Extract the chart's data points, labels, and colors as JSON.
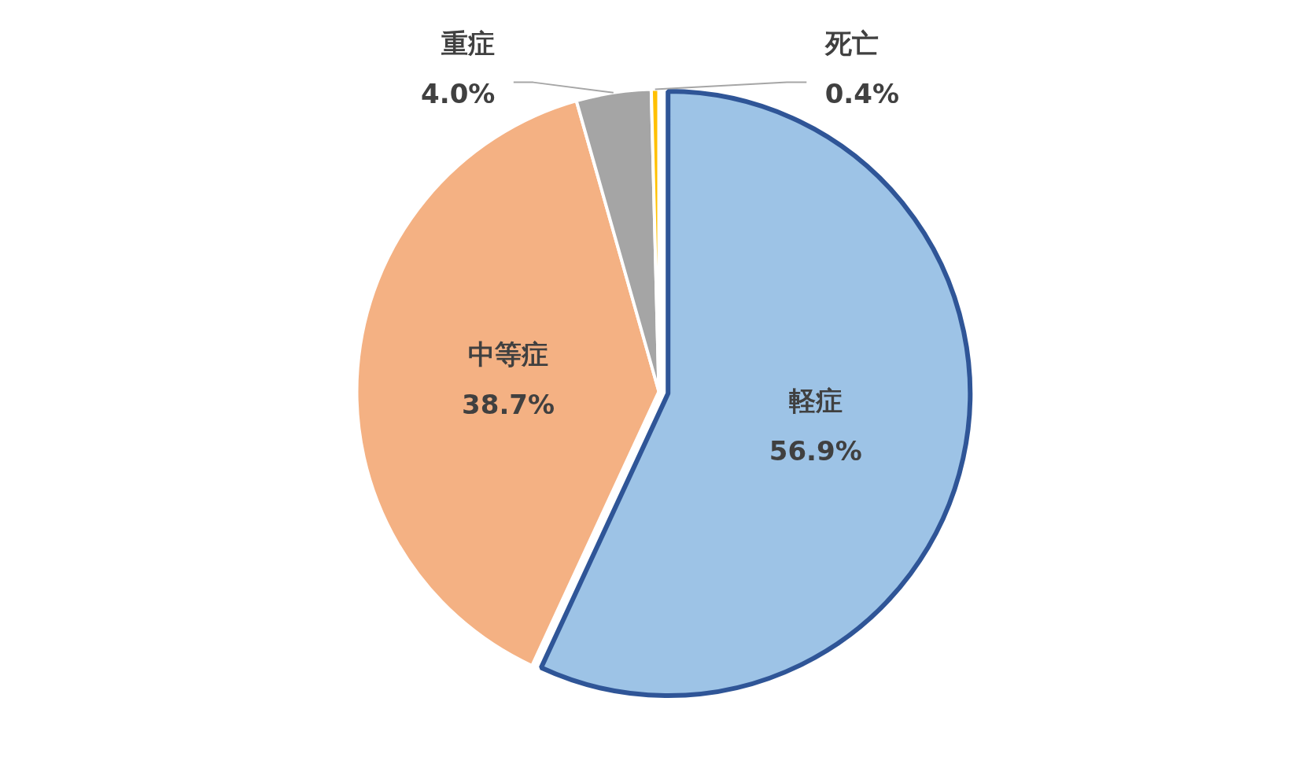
{
  "chart_data": {
    "type": "pie",
    "categories": [
      "軽症",
      "中等症",
      "重症",
      "死亡"
    ],
    "values": [
      56.9,
      38.7,
      4.0,
      0.4
    ],
    "colors": [
      "#9dc3e6",
      "#f4b183",
      "#a5a5a5",
      "#ffc000"
    ],
    "value_labels": [
      "56.9%",
      "38.7%",
      "4.0%",
      "0.4%"
    ]
  }
}
